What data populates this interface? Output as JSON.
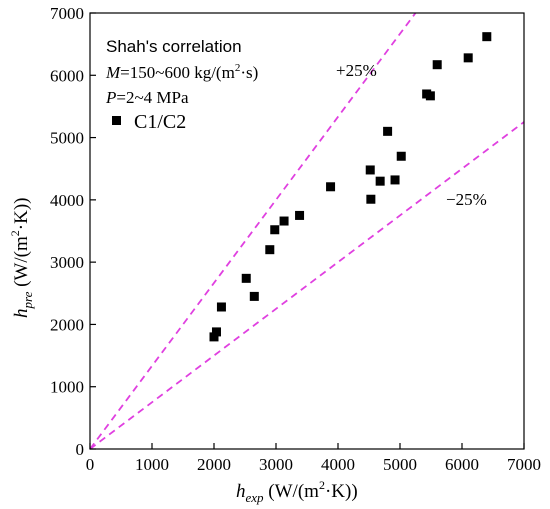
{
  "chart_data": {
    "type": "scatter",
    "xlabel": {
      "main": "h",
      "sub": "exp",
      "unit": " (W/(m",
      "sup": "2",
      "unit_end": "·K))"
    },
    "ylabel": {
      "main": "h",
      "sub": "pre",
      "unit": " (W/(m",
      "sup": "2",
      "unit_end": "·K))"
    },
    "xlim": [
      0,
      7000
    ],
    "ylim": [
      0,
      7000
    ],
    "xticks": [
      0,
      1000,
      2000,
      3000,
      4000,
      5000,
      6000,
      7000
    ],
    "yticks": [
      0,
      1000,
      2000,
      3000,
      4000,
      5000,
      6000,
      7000
    ],
    "grid": false,
    "annotations": {
      "correlation": "Shah's correlation",
      "mass_flux": {
        "var": "M",
        "text": "=150~600 kg/(m",
        "sup": "2",
        "text_end": "·s)"
      },
      "pressure": {
        "var": "P",
        "text": "=2~4 MPa"
      }
    },
    "reference_lines": [
      {
        "label": "+25%",
        "slope": 1.333333,
        "color": "#e040e0"
      },
      {
        "label": "−25%",
        "slope": 0.75,
        "color": "#e040e0"
      }
    ],
    "legend": {
      "position": "top-left",
      "marker": "square"
    },
    "series": [
      {
        "name": "C1/C2",
        "color": "#000000",
        "points": [
          [
            2000,
            1800
          ],
          [
            2040,
            1880
          ],
          [
            2120,
            2280
          ],
          [
            2520,
            2740
          ],
          [
            2650,
            2450
          ],
          [
            2900,
            3200
          ],
          [
            2980,
            3520
          ],
          [
            3130,
            3660
          ],
          [
            3380,
            3750
          ],
          [
            3880,
            4210
          ],
          [
            4520,
            4480
          ],
          [
            4530,
            4010
          ],
          [
            4680,
            4300
          ],
          [
            4800,
            5100
          ],
          [
            4920,
            4320
          ],
          [
            5020,
            4700
          ],
          [
            5430,
            5700
          ],
          [
            5490,
            5670
          ],
          [
            5600,
            6170
          ],
          [
            6100,
            6280
          ],
          [
            6400,
            6620
          ]
        ]
      }
    ]
  }
}
